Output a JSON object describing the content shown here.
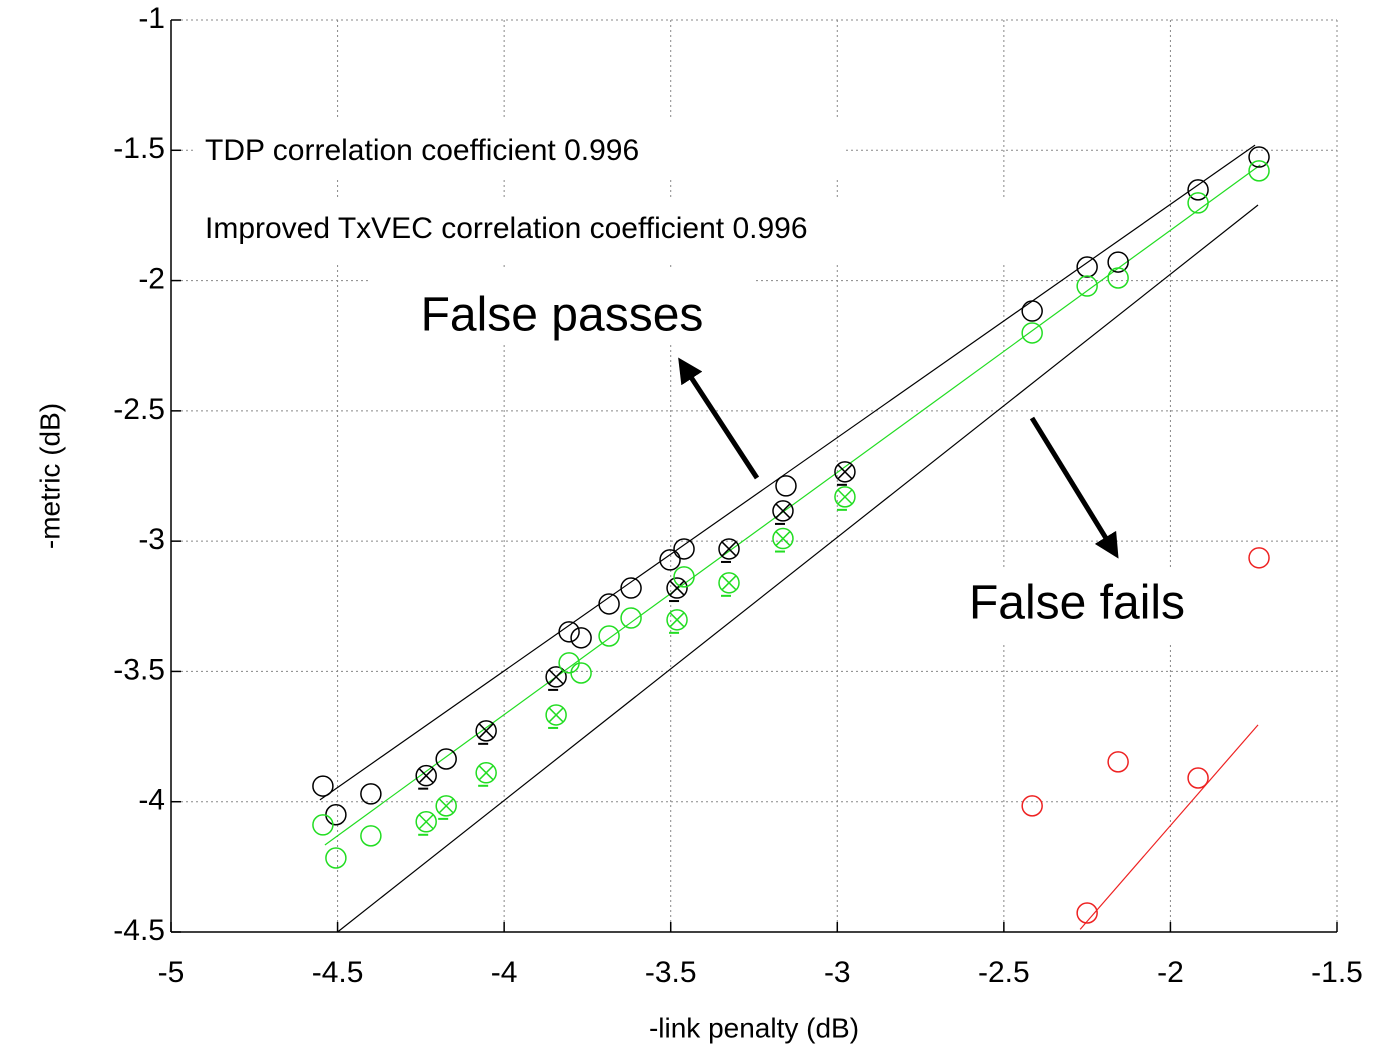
{
  "chart_data": {
    "type": "scatter",
    "xlabel": "-link penalty (dB)",
    "ylabel": "-metric (dB)",
    "xlim": [
      -5,
      -1.5
    ],
    "xticks": [
      -5,
      -4.5,
      -4,
      -3.5,
      -3,
      -2.5,
      -2,
      -1.5
    ],
    "ylim": [
      -4.5,
      -1
    ],
    "yticks": [
      -4.5,
      -4,
      -3.5,
      -3,
      -2.5,
      -2,
      -1.5,
      -1
    ],
    "grid": true,
    "annotations": [
      "TDP correlation coefficient 0.996",
      "Improved TxVEC correlation coefficient 0.996",
      "False passes",
      "False fails"
    ],
    "series": [
      {
        "color": "#000000",
        "marker": "circle",
        "x": [
          -4.544,
          -4.505,
          -4.4,
          -4.174,
          -3.805,
          -3.769,
          -3.685,
          -3.619,
          -3.502,
          -3.46,
          -3.154,
          -2.415,
          -2.25,
          -2.157,
          -1.917,
          -1.734
        ],
        "values": [
          -3.94,
          -4.05,
          -3.97,
          -3.836,
          -3.348,
          -3.371,
          -3.241,
          -3.18,
          -3.072,
          -3.03,
          -2.788,
          -2.117,
          -1.948,
          -1.929,
          -1.652,
          -1.526
        ]
      },
      {
        "color": "#000000",
        "marker": "circle-x",
        "x": [
          -4.234,
          -4.054,
          -3.844,
          -3.481,
          -3.325,
          -3.163,
          -2.977
        ],
        "values": [
          -3.9,
          -3.728,
          -3.521,
          -3.18,
          -3.03,
          -2.884,
          -2.734
        ]
      },
      {
        "color": "#22dd22",
        "marker": "circle",
        "x": [
          -4.544,
          -4.505,
          -4.4,
          -3.805,
          -3.769,
          -3.685,
          -3.619,
          -3.46,
          -2.415,
          -2.25,
          -2.157,
          -1.917,
          -1.734
        ],
        "values": [
          -4.089,
          -4.216,
          -4.131,
          -3.467,
          -3.506,
          -3.364,
          -3.295,
          -3.137,
          -2.201,
          -2.021,
          -1.99,
          -1.702,
          -1.579
        ]
      },
      {
        "color": "#22dd22",
        "marker": "circle-x",
        "x": [
          -4.234,
          -4.174,
          -4.054,
          -3.844,
          -3.481,
          -3.325,
          -3.163,
          -2.977
        ],
        "values": [
          -4.077,
          -4.016,
          -3.889,
          -3.667,
          -3.302,
          -3.16,
          -2.99,
          -2.83
        ]
      },
      {
        "color": "#ee2222",
        "marker": "circle",
        "x": [
          -2.415,
          -2.25,
          -2.157,
          -1.917,
          -1.734
        ],
        "values": [
          -4.016,
          -4.427,
          -3.847,
          -3.909,
          -3.064
        ]
      }
    ],
    "lines": [
      {
        "color": "#000000",
        "x": [
          -4.553,
          -1.746
        ],
        "values": [
          -3.993,
          -1.48
        ]
      },
      {
        "color": "#22dd22",
        "x": [
          -4.538,
          -1.73
        ],
        "values": [
          -4.166,
          -1.556
        ]
      },
      {
        "color": "#000000",
        "x": [
          -4.5,
          -1.737
        ],
        "values": [
          -4.5,
          -1.71
        ]
      },
      {
        "color": "#ee2222",
        "x": [
          -2.271,
          -1.737
        ],
        "values": [
          -4.49,
          -3.705
        ]
      }
    ]
  }
}
